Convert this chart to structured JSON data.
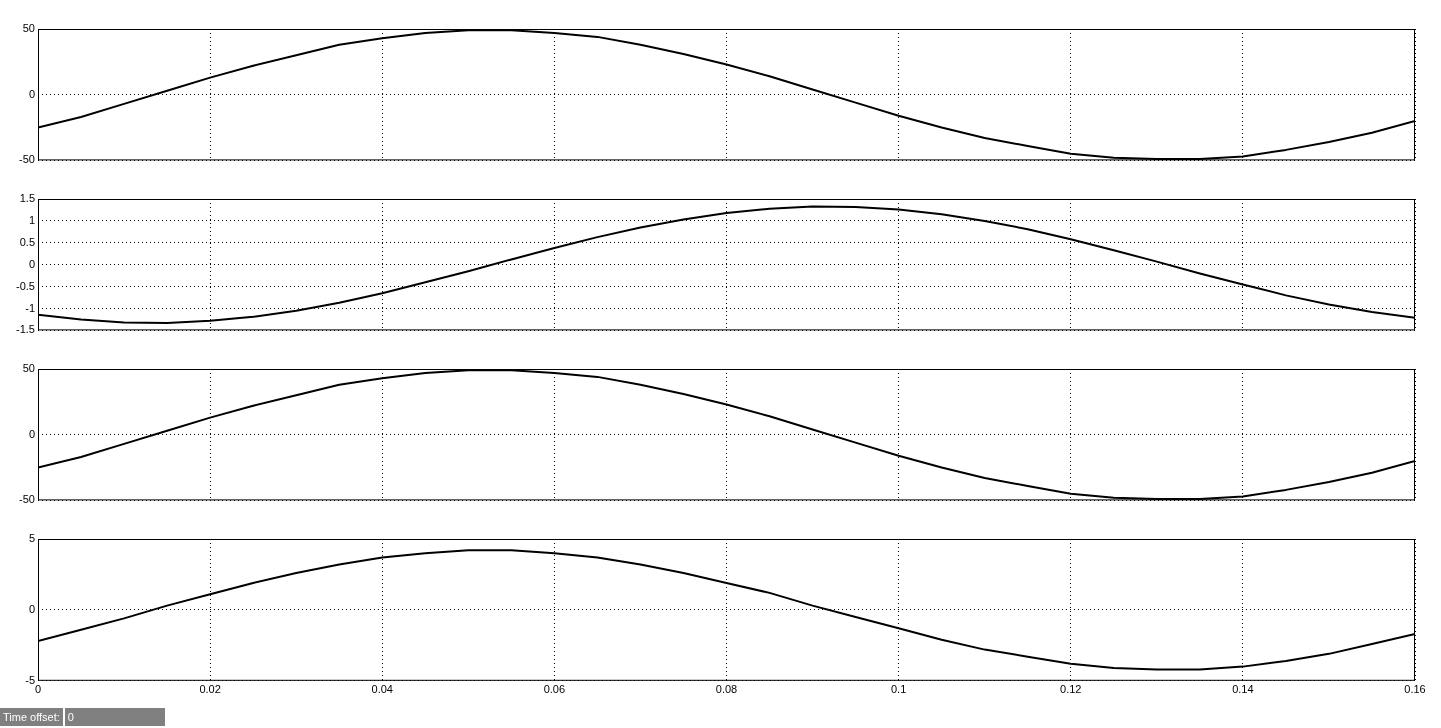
{
  "chart_data": [
    {
      "type": "line",
      "x": [
        0,
        0.005,
        0.01,
        0.015,
        0.02,
        0.025,
        0.03,
        0.035,
        0.04,
        0.045,
        0.05,
        0.055,
        0.06,
        0.065,
        0.07,
        0.075,
        0.08,
        0.085,
        0.09,
        0.095,
        0.1,
        0.105,
        0.11,
        0.115,
        0.12,
        0.125,
        0.13,
        0.135,
        0.14,
        0.145,
        0.15,
        0.155,
        0.16
      ],
      "series": [
        {
          "color": "#000000",
          "values": [
            -25,
            -17,
            -7,
            3,
            13,
            22,
            30,
            38,
            43,
            47,
            49,
            49,
            47,
            44,
            38,
            31,
            23,
            14,
            4,
            -6,
            -16,
            -25,
            -33,
            -39,
            -45,
            -48,
            -49,
            -49,
            -47,
            -42,
            -36,
            -29,
            -20
          ]
        }
      ],
      "xlim": [
        0,
        0.16
      ],
      "xticks": [
        0,
        0.02,
        0.04,
        0.06,
        0.08,
        0.1,
        0.12,
        0.14,
        0.16
      ],
      "ylim": [
        -50,
        50
      ],
      "yticks": [
        -50,
        0,
        50
      ],
      "grid": true,
      "tick_labels": "y"
    },
    {
      "type": "line",
      "x": [
        0,
        0.005,
        0.01,
        0.015,
        0.02,
        0.025,
        0.03,
        0.035,
        0.04,
        0.045,
        0.05,
        0.055,
        0.06,
        0.065,
        0.07,
        0.075,
        0.08,
        0.085,
        0.09,
        0.095,
        0.1,
        0.105,
        0.11,
        0.115,
        0.12,
        0.125,
        0.13,
        0.135,
        0.14,
        0.145,
        0.15,
        0.155,
        0.16
      ],
      "series": [
        {
          "color": "#000000",
          "values": [
            -1.14,
            -1.25,
            -1.32,
            -1.33,
            -1.28,
            -1.19,
            -1.05,
            -0.87,
            -0.65,
            -0.4,
            -0.15,
            0.12,
            0.38,
            0.63,
            0.85,
            1.03,
            1.18,
            1.28,
            1.33,
            1.32,
            1.26,
            1.15,
            1.0,
            0.81,
            0.58,
            0.33,
            0.07,
            -0.2,
            -0.45,
            -0.7,
            -0.91,
            -1.08,
            -1.21
          ]
        }
      ],
      "xlim": [
        0,
        0.16
      ],
      "xticks": [
        0,
        0.02,
        0.04,
        0.06,
        0.08,
        0.1,
        0.12,
        0.14,
        0.16
      ],
      "ylim": [
        -1.5,
        1.5
      ],
      "yticks": [
        -1.5,
        -1,
        -0.5,
        0,
        0.5,
        1,
        1.5
      ],
      "grid": true,
      "tick_labels": "y"
    },
    {
      "type": "line",
      "x": [
        0,
        0.005,
        0.01,
        0.015,
        0.02,
        0.025,
        0.03,
        0.035,
        0.04,
        0.045,
        0.05,
        0.055,
        0.06,
        0.065,
        0.07,
        0.075,
        0.08,
        0.085,
        0.09,
        0.095,
        0.1,
        0.105,
        0.11,
        0.115,
        0.12,
        0.125,
        0.13,
        0.135,
        0.14,
        0.145,
        0.15,
        0.155,
        0.16
      ],
      "series": [
        {
          "color": "#000000",
          "values": [
            -25,
            -17,
            -7,
            3,
            13,
            22,
            30,
            38,
            43,
            47,
            49,
            49,
            47,
            44,
            38,
            31,
            23,
            14,
            4,
            -6,
            -16,
            -25,
            -33,
            -39,
            -45,
            -48,
            -49,
            -49,
            -47,
            -42,
            -36,
            -29,
            -20
          ]
        }
      ],
      "xlim": [
        0,
        0.16
      ],
      "xticks": [
        0,
        0.02,
        0.04,
        0.06,
        0.08,
        0.1,
        0.12,
        0.14,
        0.16
      ],
      "ylim": [
        -50,
        50
      ],
      "yticks": [
        -50,
        0,
        50
      ],
      "grid": true,
      "tick_labels": "y"
    },
    {
      "type": "line",
      "x": [
        0,
        0.005,
        0.01,
        0.015,
        0.02,
        0.025,
        0.03,
        0.035,
        0.04,
        0.045,
        0.05,
        0.055,
        0.06,
        0.065,
        0.07,
        0.075,
        0.08,
        0.085,
        0.09,
        0.095,
        0.1,
        0.105,
        0.11,
        0.115,
        0.12,
        0.125,
        0.13,
        0.135,
        0.14,
        0.145,
        0.15,
        0.155,
        0.16
      ],
      "series": [
        {
          "color": "#000000",
          "values": [
            -2.2,
            -1.4,
            -0.6,
            0.3,
            1.1,
            1.9,
            2.6,
            3.2,
            3.7,
            4.0,
            4.2,
            4.2,
            4.0,
            3.7,
            3.2,
            2.6,
            1.9,
            1.2,
            0.3,
            -0.5,
            -1.3,
            -2.1,
            -2.8,
            -3.3,
            -3.8,
            -4.1,
            -4.2,
            -4.2,
            -4.0,
            -3.6,
            -3.1,
            -2.4,
            -1.7
          ]
        }
      ],
      "xlim": [
        0,
        0.16
      ],
      "xticks": [
        0,
        0.02,
        0.04,
        0.06,
        0.08,
        0.1,
        0.12,
        0.14,
        0.16
      ],
      "ylim": [
        -5,
        5
      ],
      "yticks": [
        -5,
        0,
        5
      ],
      "grid": true,
      "annotations": [
        "Time offset:",
        "0"
      ]
    }
  ]
}
